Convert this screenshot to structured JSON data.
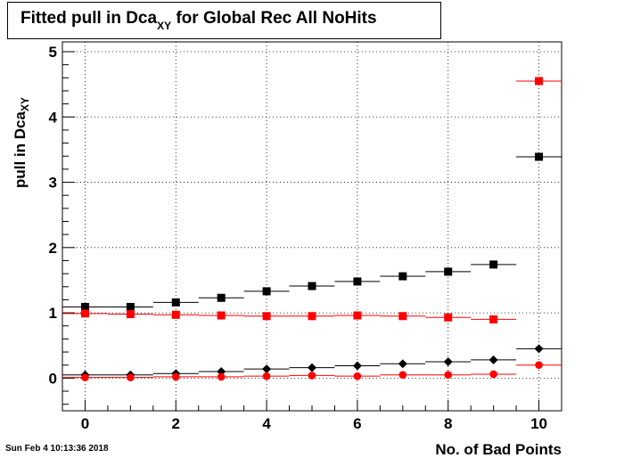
{
  "title": {
    "prefix": "Fitted pull in Dca",
    "sub": "XY",
    "suffix": " for Global Rec All NoHits"
  },
  "footer": {
    "date": "Sun Feb  4 10:13:36 2018"
  },
  "chart_data": {
    "type": "scatter",
    "xlabel": "No. of Bad Points",
    "ylabel": {
      "main": "pull in Dca",
      "sub": "XY"
    },
    "xlim": [
      -0.5,
      10.5
    ],
    "ylim": [
      -0.5,
      5.15
    ],
    "x_ticks": [
      0,
      2,
      4,
      6,
      8,
      10
    ],
    "y_ticks": [
      0,
      1,
      2,
      3,
      4,
      5
    ],
    "grid": true,
    "x": [
      0,
      1,
      2,
      3,
      4,
      5,
      6,
      7,
      8,
      9,
      10
    ],
    "series": [
      {
        "marker": "square",
        "color": "#000000",
        "values": [
          1.09,
          1.09,
          1.16,
          1.23,
          1.33,
          1.41,
          1.48,
          1.56,
          1.63,
          1.74,
          3.39
        ]
      },
      {
        "marker": "square",
        "color": "#ff0000",
        "values": [
          0.99,
          0.98,
          0.97,
          0.96,
          0.95,
          0.95,
          0.96,
          0.95,
          0.93,
          0.9,
          4.55
        ]
      },
      {
        "marker": "diamond",
        "color": "#000000",
        "values": [
          0.05,
          0.05,
          0.07,
          0.1,
          0.14,
          0.16,
          0.19,
          0.22,
          0.25,
          0.28,
          0.45
        ]
      },
      {
        "marker": "circle",
        "color": "#ff0000",
        "values": [
          0.01,
          0.01,
          0.02,
          0.02,
          0.03,
          0.04,
          0.03,
          0.05,
          0.05,
          0.06,
          0.2
        ]
      }
    ]
  }
}
